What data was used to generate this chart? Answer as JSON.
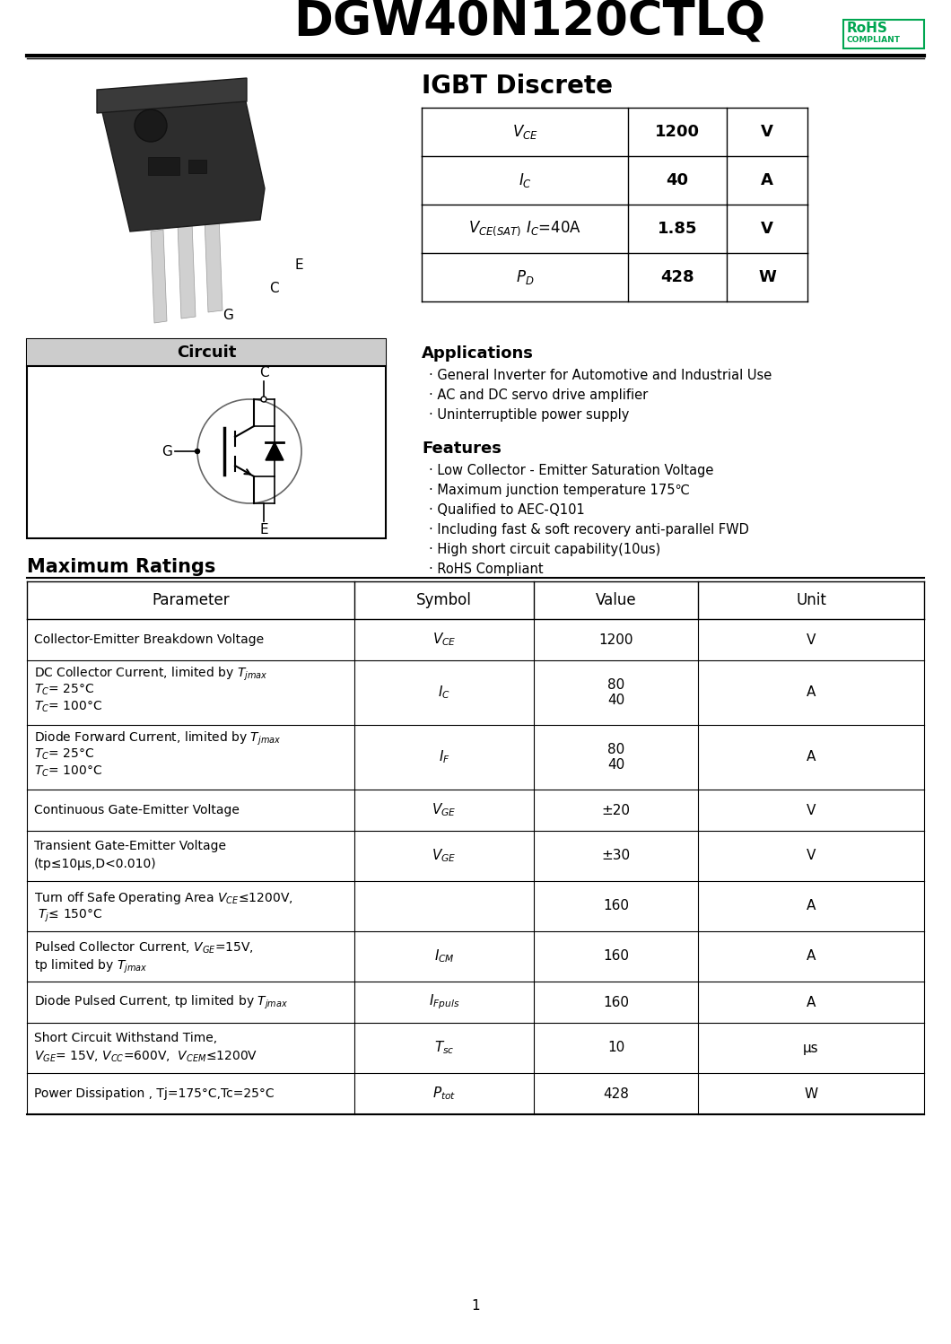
{
  "title": "DGW40N120CTLQ",
  "igbt_discrete_title": "IGBT Discrete",
  "quick_table_rows": [
    [
      "$V_{CE}$",
      "1200",
      "V"
    ],
    [
      "$I_C$",
      "40",
      "A"
    ],
    [
      "$V_{CE(SAT)}$ $I_C$=40A",
      "1.85",
      "V"
    ],
    [
      "$P_D$",
      "428",
      "W"
    ]
  ],
  "applications_title": "Applications",
  "applications": [
    "General Inverter for Automotive and Industrial Use",
    "AC and DC servo drive amplifier",
    "Uninterruptible power supply"
  ],
  "features_title": "Features",
  "features": [
    "Low Collector - Emitter Saturation Voltage",
    "Maximum junction temperature 175℃",
    "Qualified to AEC-Q101",
    "Including fast & soft recovery anti-parallel FWD",
    "High short circuit capability(10us)",
    "RoHS Compliant"
  ],
  "circuit_title": "Circuit",
  "max_ratings_title": "Maximum Ratings",
  "max_ratings_headers": [
    "Parameter",
    "Symbol",
    "Value",
    "Unit"
  ],
  "row_configs": [
    {
      "lines": [
        "Collector-Emitter Breakdown Voltage"
      ],
      "sym": "$V_{CE}$",
      "val": "1200",
      "unit": "V",
      "rh": 46
    },
    {
      "lines": [
        "DC Collector Current, limited by $T_{jmax}$",
        "$T_C$= 25°C",
        "$T_C$= 100°C"
      ],
      "sym": "$I_C$",
      "val": "80\n40",
      "unit": "A",
      "rh": 72
    },
    {
      "lines": [
        "Diode Forward Current, limited by $T_{jmax}$",
        "$T_C$= 25°C",
        "$T_C$= 100°C"
      ],
      "sym": "$I_F$",
      "val": "80\n40",
      "unit": "A",
      "rh": 72
    },
    {
      "lines": [
        "Continuous Gate-Emitter Voltage"
      ],
      "sym": "$V_{GE}$",
      "val": "±20",
      "unit": "V",
      "rh": 46
    },
    {
      "lines": [
        "Transient Gate-Emitter Voltage",
        "(tp≤10μs,D<0.010)"
      ],
      "sym": "$V_{GE}$",
      "val": "±30",
      "unit": "V",
      "rh": 56
    },
    {
      "lines": [
        "Turn off Safe Operating Area $V_{CE}$≤1200V,",
        " $T_j$≤ 150°C"
      ],
      "sym": "",
      "val": "160",
      "unit": "A",
      "rh": 56
    },
    {
      "lines": [
        "Pulsed Collector Current, $V_{GE}$=15V,",
        "tp limited by $T_{jmax}$"
      ],
      "sym": "$I_{CM}$",
      "val": "160",
      "unit": "A",
      "rh": 56
    },
    {
      "lines": [
        "Diode Pulsed Current, tp limited by $T_{jmax}$"
      ],
      "sym": "$I_{Fpuls}$",
      "val": "160",
      "unit": "A",
      "rh": 46
    },
    {
      "lines": [
        "Short Circuit Withstand Time,",
        "$V_{GE}$= 15V, $V_{CC}$=600V,  $V_{CEM}$≤1200V"
      ],
      "sym": "$T_{sc}$",
      "val": "10",
      "unit": "μs",
      "rh": 56
    },
    {
      "lines": [
        "Power Dissipation , Tj=175°C,Tc=25°C"
      ],
      "sym": "$P_{tot}$",
      "val": "428",
      "unit": "W",
      "rh": 46
    }
  ],
  "page_number": "1",
  "bg_color": "#ffffff",
  "green_color": "#00a651"
}
